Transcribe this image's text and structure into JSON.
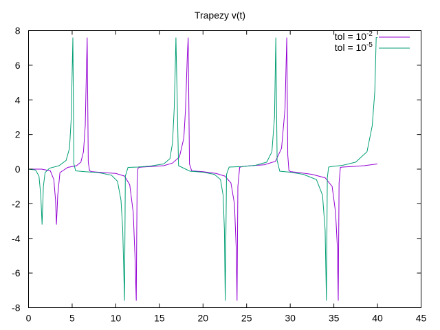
{
  "chart_data": {
    "type": "line",
    "title": "Trapezy  v(t)",
    "xlabel": "",
    "ylabel": "",
    "xlim": [
      0,
      45
    ],
    "ylim": [
      -8,
      8
    ],
    "xticks": [
      0,
      5,
      10,
      15,
      20,
      25,
      30,
      35,
      40,
      45
    ],
    "yticks": [
      -8,
      -6,
      -4,
      -2,
      0,
      2,
      4,
      6,
      8
    ],
    "grid": false,
    "legend_position": "top-right",
    "series": [
      {
        "name": "tol = 10^-2",
        "label_base": "tol = 10",
        "label_exp": "-2",
        "color": "#9400d3",
        "x": [
          0,
          1.5,
          2.5,
          2.9,
          3.1,
          3.2,
          3.35,
          3.6,
          4.5,
          5.5,
          6.0,
          6.3,
          6.5,
          6.6,
          6.72,
          6.85,
          7.0,
          7.3,
          8.5,
          10.0,
          11.0,
          11.6,
          12.0,
          12.2,
          12.35,
          12.45,
          12.55,
          12.7,
          13.0,
          14.0,
          15.5,
          16.5,
          17.3,
          17.8,
          18.0,
          18.2,
          18.3,
          18.45,
          18.7,
          20.0,
          21.5,
          22.5,
          23.2,
          23.6,
          23.8,
          23.9,
          24.0,
          24.2,
          24.5,
          25.5,
          27.0,
          28.3,
          29.0,
          29.4,
          29.6,
          29.72,
          29.85,
          30.1,
          31.0,
          32.5,
          34.0,
          34.8,
          35.2,
          35.4,
          35.5,
          35.6,
          35.75,
          36.0,
          37.0,
          38.5,
          40.0
        ],
        "y": [
          0,
          0,
          -0.1,
          -0.6,
          -1.8,
          -3.2,
          -1.5,
          -0.2,
          0.1,
          0.2,
          0.4,
          1.0,
          2.5,
          4.8,
          7.6,
          0.4,
          -0.1,
          -0.15,
          -0.2,
          -0.25,
          -0.4,
          -0.9,
          -2.5,
          -5.0,
          -7.6,
          -0.5,
          0.05,
          0.1,
          0.12,
          0.15,
          0.2,
          0.35,
          0.7,
          1.8,
          3.5,
          6.5,
          7.6,
          0.3,
          -0.1,
          -0.15,
          -0.25,
          -0.4,
          -0.8,
          -2.0,
          -4.5,
          -7.6,
          -1.0,
          0.1,
          0.15,
          0.2,
          0.25,
          0.45,
          1.2,
          3.5,
          7.6,
          0.8,
          -0.1,
          -0.15,
          -0.2,
          -0.3,
          -0.5,
          -1.0,
          -2.5,
          -4.5,
          -7.6,
          -0.8,
          0.1,
          0.12,
          0.15,
          0.2,
          0.3
        ]
      },
      {
        "name": "tol = 10^-5",
        "label_base": "tol = 10",
        "label_exp": "-5",
        "color": "#009e73",
        "x": [
          0,
          0.8,
          1.2,
          1.4,
          1.55,
          1.7,
          1.9,
          2.4,
          3.5,
          4.3,
          4.7,
          4.9,
          5.0,
          5.08,
          5.2,
          5.4,
          6.5,
          8.0,
          9.5,
          10.2,
          10.6,
          10.8,
          10.9,
          11.0,
          11.1,
          11.4,
          12.5,
          14.0,
          15.5,
          16.2,
          16.5,
          16.7,
          16.8,
          16.9,
          17.2,
          18.5,
          20.0,
          21.3,
          22.0,
          22.3,
          22.45,
          22.55,
          22.7,
          23.0,
          24.5,
          26.0,
          27.3,
          27.9,
          28.2,
          28.35,
          28.5,
          28.8,
          30.0,
          31.5,
          33.0,
          33.7,
          34.0,
          34.15,
          34.25,
          34.4,
          34.7,
          36.0,
          37.5,
          38.8,
          39.4,
          39.7,
          39.85,
          39.95,
          40.0
        ],
        "y": [
          0,
          -0.05,
          -0.4,
          -1.5,
          -3.2,
          -1.0,
          -0.2,
          0.05,
          0.2,
          0.5,
          1.2,
          3.0,
          5.5,
          7.6,
          0.3,
          -0.1,
          -0.15,
          -0.2,
          -0.35,
          -0.7,
          -1.8,
          -3.5,
          -5.5,
          -7.6,
          -0.4,
          0.1,
          0.12,
          0.18,
          0.3,
          0.6,
          1.5,
          3.5,
          5.5,
          7.6,
          0.2,
          -0.12,
          -0.18,
          -0.3,
          -0.6,
          -1.5,
          -3.5,
          -7.6,
          -0.3,
          0.12,
          0.15,
          0.22,
          0.4,
          1.0,
          3.0,
          7.6,
          0.5,
          -0.12,
          -0.18,
          -0.3,
          -0.6,
          -1.5,
          -3.5,
          -7.6,
          -0.5,
          0.12,
          0.15,
          0.22,
          0.4,
          1.0,
          2.5,
          4.5,
          7.6,
          7.6,
          7.6
        ]
      }
    ]
  }
}
